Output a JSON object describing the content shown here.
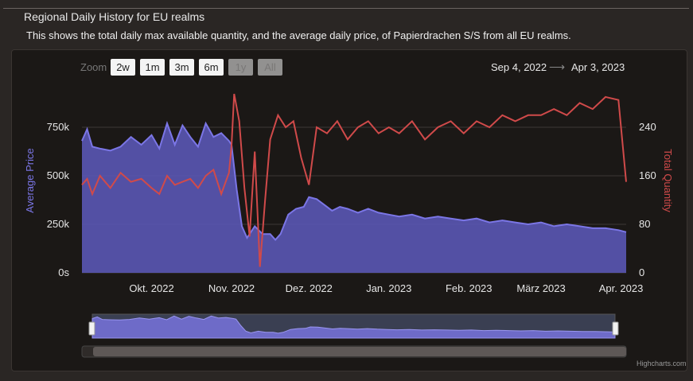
{
  "header": {
    "legend": "Regional Daily History for EU realms",
    "description": "This shows the total daily max available quantity, and the average daily price, of Papierdrachen S/S from all EU realms."
  },
  "zoom": {
    "label": "Zoom",
    "buttons": [
      {
        "label": "2w",
        "enabled": true
      },
      {
        "label": "1m",
        "enabled": true
      },
      {
        "label": "3m",
        "enabled": true
      },
      {
        "label": "6m",
        "enabled": true
      },
      {
        "label": "1y",
        "enabled": false
      },
      {
        "label": "All",
        "enabled": false
      }
    ]
  },
  "range": {
    "from": "Sep 4, 2022",
    "arrow": "⟶",
    "to": "Apr 3, 2023"
  },
  "credits": "Highcharts.com",
  "colors": {
    "price": "#7b76e6",
    "price_fill": "#5a56b4",
    "quantity": "#d04a4a",
    "grid": "#3c3836"
  },
  "chart_data": {
    "type": "area",
    "x_start": "2022-09-04",
    "x_end": "2023-04-03",
    "x_ticks": [
      {
        "label": "Okt. 2022",
        "date": "2022-10-01"
      },
      {
        "label": "Nov. 2022",
        "date": "2022-11-01"
      },
      {
        "label": "Dez. 2022",
        "date": "2022-12-01"
      },
      {
        "label": "Jan. 2023",
        "date": "2023-01-01"
      },
      {
        "label": "Feb. 2023",
        "date": "2023-02-01"
      },
      {
        "label": "März 2023",
        "date": "2023-03-01"
      },
      {
        "label": "Apr. 2023",
        "date": "2023-04-01"
      }
    ],
    "y_left": {
      "label": "Average Price",
      "ticks": [
        "0s",
        "250k",
        "500k",
        "750k"
      ],
      "range": [
        0,
        750000
      ]
    },
    "y_right": {
      "label": "Total Quantity",
      "ticks": [
        "0",
        "80",
        "160",
        "240"
      ],
      "range": [
        0,
        240
      ]
    },
    "series": [
      {
        "name": "Average Price",
        "axis": "left",
        "points": [
          [
            "2022-09-04",
            680000
          ],
          [
            "2022-09-06",
            740000
          ],
          [
            "2022-09-08",
            650000
          ],
          [
            "2022-09-11",
            640000
          ],
          [
            "2022-09-15",
            630000
          ],
          [
            "2022-09-19",
            650000
          ],
          [
            "2022-09-23",
            700000
          ],
          [
            "2022-09-27",
            660000
          ],
          [
            "2022-10-01",
            710000
          ],
          [
            "2022-10-04",
            640000
          ],
          [
            "2022-10-07",
            770000
          ],
          [
            "2022-10-10",
            660000
          ],
          [
            "2022-10-13",
            760000
          ],
          [
            "2022-10-16",
            700000
          ],
          [
            "2022-10-19",
            650000
          ],
          [
            "2022-10-22",
            770000
          ],
          [
            "2022-10-25",
            700000
          ],
          [
            "2022-10-28",
            720000
          ],
          [
            "2022-10-31",
            680000
          ],
          [
            "2022-11-01",
            660000
          ],
          [
            "2022-11-03",
            430000
          ],
          [
            "2022-11-05",
            240000
          ],
          [
            "2022-11-07",
            180000
          ],
          [
            "2022-11-10",
            240000
          ],
          [
            "2022-11-13",
            200000
          ],
          [
            "2022-11-16",
            200000
          ],
          [
            "2022-11-18",
            170000
          ],
          [
            "2022-11-20",
            200000
          ],
          [
            "2022-11-23",
            300000
          ],
          [
            "2022-11-26",
            330000
          ],
          [
            "2022-11-29",
            340000
          ],
          [
            "2022-12-01",
            390000
          ],
          [
            "2022-12-04",
            380000
          ],
          [
            "2022-12-07",
            350000
          ],
          [
            "2022-12-10",
            320000
          ],
          [
            "2022-12-13",
            340000
          ],
          [
            "2022-12-16",
            330000
          ],
          [
            "2022-12-20",
            310000
          ],
          [
            "2022-12-24",
            330000
          ],
          [
            "2022-12-28",
            310000
          ],
          [
            "2023-01-01",
            300000
          ],
          [
            "2023-01-05",
            290000
          ],
          [
            "2023-01-10",
            300000
          ],
          [
            "2023-01-15",
            280000
          ],
          [
            "2023-01-20",
            290000
          ],
          [
            "2023-01-25",
            280000
          ],
          [
            "2023-01-30",
            270000
          ],
          [
            "2023-02-04",
            280000
          ],
          [
            "2023-02-09",
            260000
          ],
          [
            "2023-02-14",
            270000
          ],
          [
            "2023-02-19",
            260000
          ],
          [
            "2023-02-24",
            250000
          ],
          [
            "2023-03-01",
            260000
          ],
          [
            "2023-03-06",
            240000
          ],
          [
            "2023-03-11",
            250000
          ],
          [
            "2023-03-16",
            240000
          ],
          [
            "2023-03-21",
            230000
          ],
          [
            "2023-03-26",
            230000
          ],
          [
            "2023-03-31",
            220000
          ],
          [
            "2023-04-03",
            210000
          ]
        ]
      },
      {
        "name": "Total Quantity",
        "axis": "right",
        "points": [
          [
            "2022-09-04",
            145000
          ],
          [
            "2022-09-06",
            155000
          ],
          [
            "2022-09-08",
            130000
          ],
          [
            "2022-09-11",
            160000
          ],
          [
            "2022-09-15",
            140000
          ],
          [
            "2022-09-19",
            165000
          ],
          [
            "2022-09-23",
            150000
          ],
          [
            "2022-09-27",
            155000
          ],
          [
            "2022-10-01",
            140000
          ],
          [
            "2022-10-04",
            130000
          ],
          [
            "2022-10-07",
            160000
          ],
          [
            "2022-10-10",
            145000
          ],
          [
            "2022-10-13",
            150000
          ],
          [
            "2022-10-16",
            155000
          ],
          [
            "2022-10-19",
            140000
          ],
          [
            "2022-10-22",
            160000
          ],
          [
            "2022-10-25",
            170000
          ],
          [
            "2022-10-28",
            130000
          ],
          [
            "2022-10-31",
            165000
          ],
          [
            "2022-11-01",
            210000
          ],
          [
            "2022-11-02",
            295000
          ],
          [
            "2022-11-04",
            250000
          ],
          [
            "2022-11-06",
            140000
          ],
          [
            "2022-11-08",
            60000
          ],
          [
            "2022-11-10",
            200000
          ],
          [
            "2022-11-12",
            10000
          ],
          [
            "2022-11-14",
            120000
          ],
          [
            "2022-11-16",
            220000
          ],
          [
            "2022-11-19",
            260000
          ],
          [
            "2022-11-22",
            240000
          ],
          [
            "2022-11-25",
            250000
          ],
          [
            "2022-11-28",
            190000
          ],
          [
            "2022-12-01",
            145000
          ],
          [
            "2022-12-04",
            240000
          ],
          [
            "2022-12-08",
            230000
          ],
          [
            "2022-12-12",
            250000
          ],
          [
            "2022-12-16",
            220000
          ],
          [
            "2022-12-20",
            240000
          ],
          [
            "2022-12-24",
            250000
          ],
          [
            "2022-12-28",
            230000
          ],
          [
            "2023-01-01",
            240000
          ],
          [
            "2023-01-05",
            230000
          ],
          [
            "2023-01-10",
            250000
          ],
          [
            "2023-01-15",
            220000
          ],
          [
            "2023-01-20",
            240000
          ],
          [
            "2023-01-25",
            250000
          ],
          [
            "2023-01-30",
            230000
          ],
          [
            "2023-02-04",
            250000
          ],
          [
            "2023-02-09",
            240000
          ],
          [
            "2023-02-14",
            260000
          ],
          [
            "2023-02-19",
            250000
          ],
          [
            "2023-02-24",
            260000
          ],
          [
            "2023-03-01",
            260000
          ],
          [
            "2023-03-06",
            270000
          ],
          [
            "2023-03-11",
            260000
          ],
          [
            "2023-03-16",
            280000
          ],
          [
            "2023-03-21",
            270000
          ],
          [
            "2023-03-26",
            290000
          ],
          [
            "2023-03-31",
            285000
          ],
          [
            "2023-04-03",
            150000
          ]
        ]
      }
    ],
    "navigator": true
  }
}
